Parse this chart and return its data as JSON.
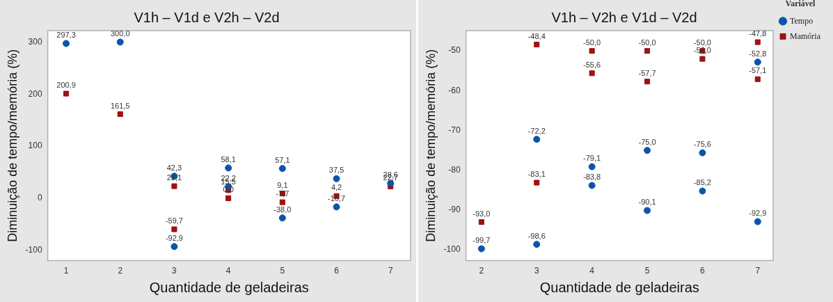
{
  "chart_data": [
    {
      "type": "scatter",
      "title": "V1h – V1d e V2h – V2d",
      "xlabel": "Quantidade de geladeiras",
      "ylabel": "Diminuição de tempo/memória (%)",
      "xlim": [
        0.66,
        7.37
      ],
      "xticks": [
        1,
        2,
        3,
        4,
        5,
        6,
        7
      ],
      "ylim": [
        -120,
        322
      ],
      "yticks": [
        -100,
        0,
        100,
        200,
        300
      ],
      "grid": false,
      "legend": false,
      "series": [
        {
          "color": "#0b56a8",
          "marker": "circle",
          "x": [
            1,
            2,
            3,
            3,
            4,
            4,
            5,
            5,
            6,
            6,
            7
          ],
          "values": [
            297.3,
            300.0,
            42.3,
            -92.9,
            58.1,
            22.2,
            57.1,
            -38.0,
            37.5,
            -16.7,
            28.6
          ],
          "value_labels": [
            "297,3",
            "300,0",
            "42,3",
            "-92,9",
            "58,1",
            "22,2",
            "57,1",
            "-38,0",
            "37,5",
            "-16,7",
            "28,6"
          ]
        },
        {
          "color": "#9b1313",
          "marker": "square",
          "x": [
            1,
            2,
            3,
            3,
            4,
            4,
            5,
            5,
            6,
            7
          ],
          "values": [
            200.9,
            161.5,
            23.1,
            -59.7,
            15.5,
            0.0,
            9.1,
            -7.7,
            4.2,
            22.7
          ],
          "value_labels": [
            "200,9",
            "161,5",
            "23,1",
            "-59,7",
            "15,5",
            "0,0",
            "9,1",
            "-7,7",
            "4,2",
            "22,7"
          ]
        }
      ]
    },
    {
      "type": "scatter",
      "title": "V1h – V2h e V1d – V2d",
      "xlabel": "Quantidade de geladeiras",
      "ylabel": "Diminuição de tempo/memória (%)",
      "legend_title": "Variável",
      "xlim": [
        1.72,
        7.28
      ],
      "xticks": [
        2,
        3,
        4,
        5,
        6,
        7
      ],
      "ylim": [
        -102.7,
        -44.9
      ],
      "yticks": [
        -100,
        -90,
        -80,
        -70,
        -60,
        -50
      ],
      "grid": false,
      "legend": "right",
      "series": [
        {
          "name": "Tempo",
          "color": "#0b56a8",
          "marker": "circle",
          "x": [
            2,
            3,
            3,
            4,
            4,
            5,
            5,
            6,
            6,
            7,
            7
          ],
          "values": [
            -99.7,
            -72.2,
            -98.6,
            -79.1,
            -83.8,
            -75.0,
            -90.1,
            -75.6,
            -85.2,
            -52.8,
            -92.9
          ],
          "value_labels": [
            "-99,7",
            "-72,2",
            "-98,6",
            "-79,1",
            "-83,8",
            "-75,0",
            "-90,1",
            "-75,6",
            "-85,2",
            "-52,8",
            "-92,9"
          ]
        },
        {
          "name": "Mamória",
          "color": "#9b1313",
          "marker": "square",
          "x": [
            2,
            3,
            3,
            4,
            4,
            5,
            5,
            6,
            6,
            7,
            7
          ],
          "values": [
            -93.0,
            -48.4,
            -83.1,
            -50.0,
            -55.6,
            -50.0,
            -57.7,
            -50.0,
            -52.0,
            -47.8,
            -57.1
          ],
          "value_labels": [
            "-93,0",
            "-48,4",
            "-83,1",
            "-50,0",
            "-55,6",
            "-50,0",
            "-57,7",
            "-50,0",
            "-52,0",
            "-47,8",
            "-57,1"
          ]
        }
      ]
    }
  ]
}
